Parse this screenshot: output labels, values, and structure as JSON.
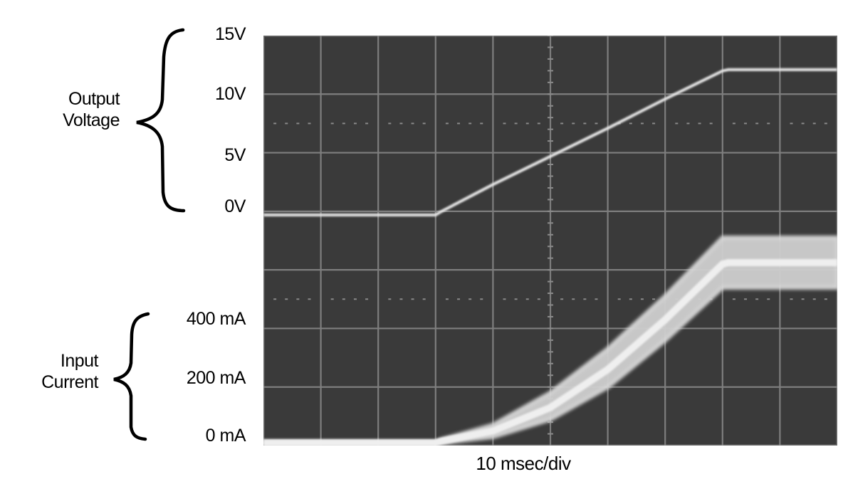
{
  "chart_data": {
    "type": "line",
    "title": "",
    "xlabel": "10 msec/div",
    "x_unit": "ms",
    "x_divisions": 10,
    "y_divisions": 7,
    "grid": true,
    "series": [
      {
        "name": "Output Voltage",
        "unit": "V",
        "axis_ticks": [
          "0V",
          "5V",
          "10V",
          "15V"
        ],
        "x": [
          0,
          10,
          20,
          30,
          31,
          40,
          50,
          60,
          70,
          80,
          81,
          90,
          100
        ],
        "values": [
          0,
          0,
          0,
          0,
          0.3,
          2.6,
          5.0,
          7.4,
          9.9,
          12.3,
          12.4,
          12.4,
          12.4
        ]
      },
      {
        "name": "Input Current",
        "unit": "mA",
        "axis_ticks": [
          "0 mA",
          "200 mA",
          "400 mA"
        ],
        "x": [
          0,
          10,
          20,
          30,
          31,
          40,
          50,
          60,
          70,
          80,
          81,
          90,
          100
        ],
        "values": [
          0,
          0,
          0,
          0,
          5,
          40,
          120,
          250,
          420,
          610,
          615,
          615,
          615
        ],
        "band_min": [
          0,
          0,
          0,
          0,
          0,
          20,
          80,
          190,
          350,
          530,
          530,
          530,
          530
        ],
        "band_max": [
          0,
          0,
          0,
          0,
          10,
          60,
          170,
          320,
          500,
          700,
          700,
          700,
          700
        ]
      }
    ],
    "colors": {
      "screen": "#3a3a3a",
      "grid": "#8a8a8a",
      "trace": "#e8e8e8",
      "text": "#000000"
    }
  },
  "labels": {
    "voltage_group": [
      "Output",
      "Voltage"
    ],
    "voltage_ticks": [
      "15V",
      "10V",
      "5V",
      "0V"
    ],
    "current_group": [
      "Input",
      "Current"
    ],
    "current_ticks": [
      "400 mA",
      "200 mA",
      "0 mA"
    ],
    "x_axis": "10 msec/div"
  }
}
